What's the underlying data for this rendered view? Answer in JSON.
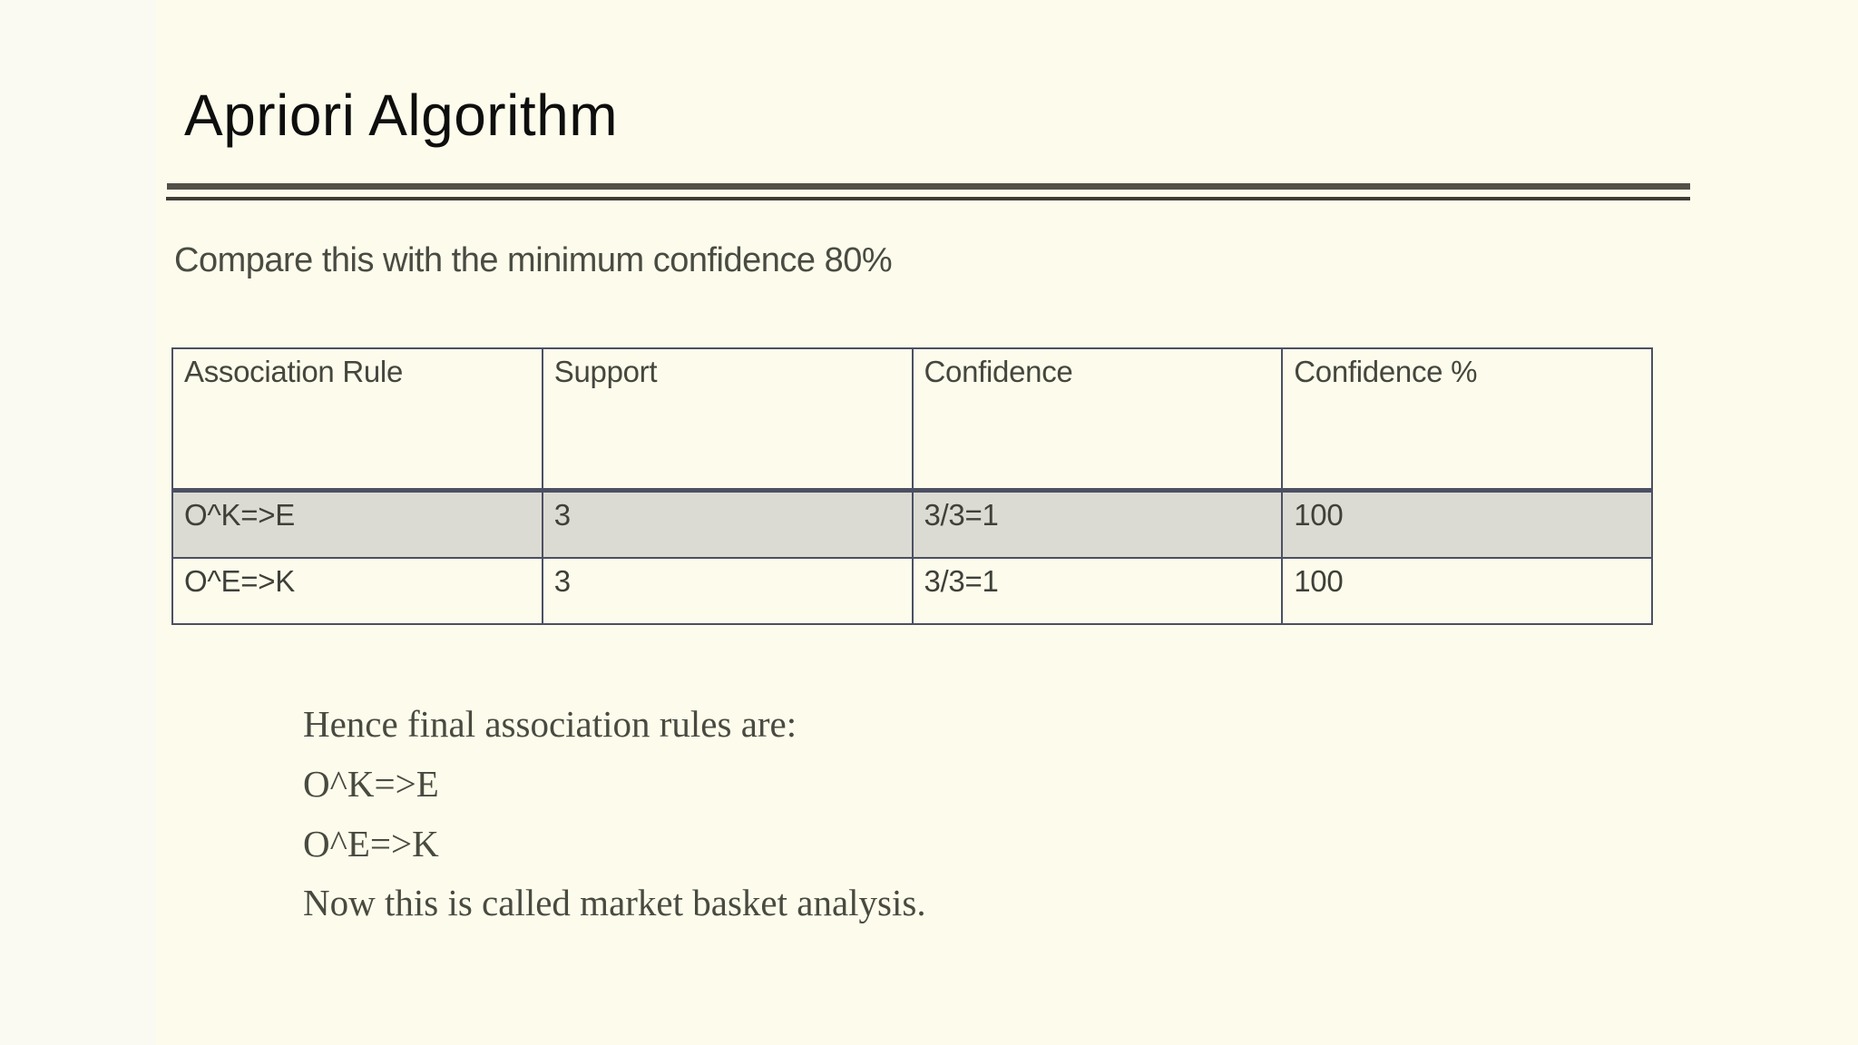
{
  "slide": {
    "title": "Apriori Algorithm",
    "subtitle": "Compare this with the minimum confidence 80%",
    "table": {
      "headers": [
        "Association Rule",
        "Support",
        "Confidence",
        "Confidence %"
      ],
      "rows": [
        {
          "cells": [
            "O^K=>E",
            "3",
            "3/3=1",
            "100"
          ],
          "highlighted": true
        },
        {
          "cells": [
            "O^E=>K",
            "3",
            "3/3=1",
            "100"
          ],
          "highlighted": false
        }
      ]
    },
    "notes": [
      "Hence final association rules are:",
      "O^K=>E",
      "O^E=>K",
      "Now this is called market basket analysis."
    ],
    "colors": {
      "page_bg": "#FAFAF2",
      "slide_bg": "#FDFCEC",
      "title_text": "#0E0E0E",
      "body_text": "#4A4B42",
      "serif_text": "#494A40",
      "table_border": "#4B5063",
      "highlight_row_bg": "#DBDBD3",
      "rule_thick": "#545048",
      "rule_thin": "#403C35"
    }
  }
}
